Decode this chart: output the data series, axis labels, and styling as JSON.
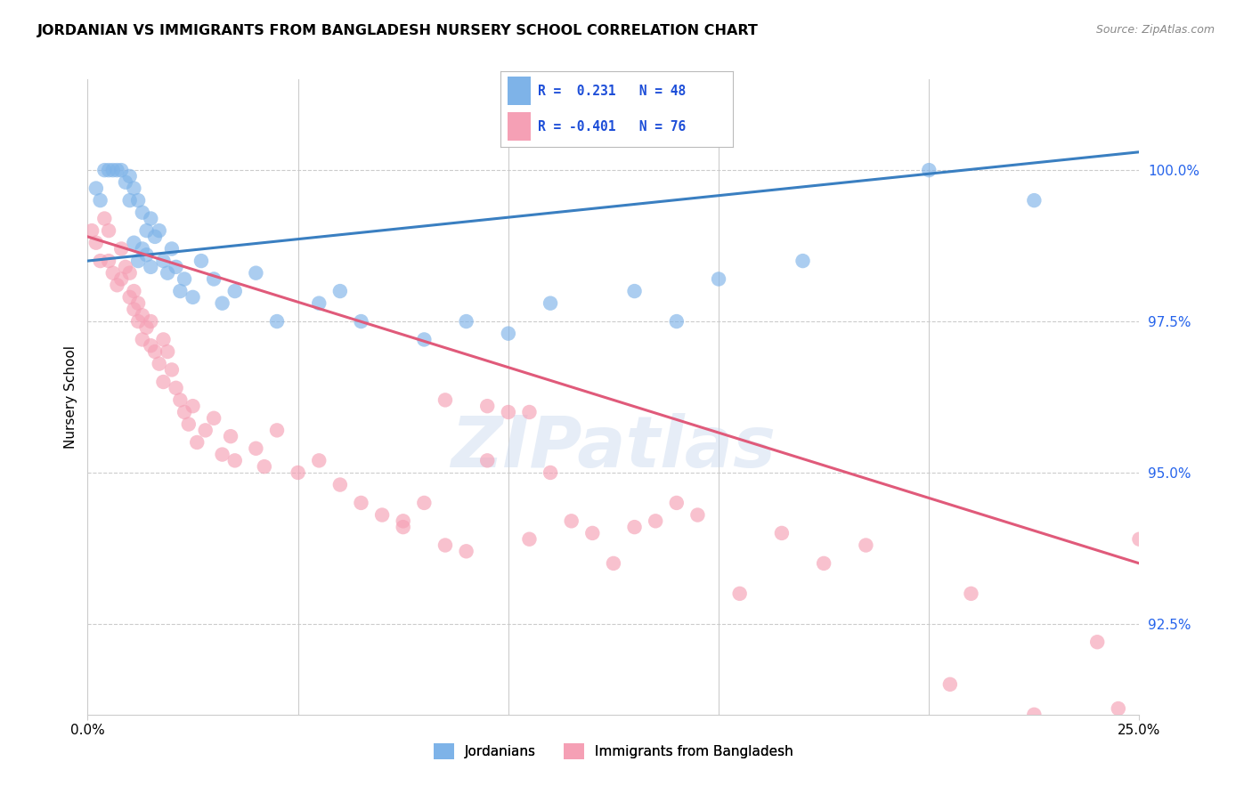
{
  "title": "JORDANIAN VS IMMIGRANTS FROM BANGLADESH NURSERY SCHOOL CORRELATION CHART",
  "source": "Source: ZipAtlas.com",
  "ylabel": "Nursery School",
  "ytick_values": [
    92.5,
    95.0,
    97.5,
    100.0
  ],
  "xlim": [
    0.0,
    25.0
  ],
  "ylim": [
    91.0,
    101.5
  ],
  "legend_blue_r_val": "0.231",
  "legend_blue_n_val": "48",
  "legend_pink_r_val": "-0.401",
  "legend_pink_n_val": "76",
  "blue_color": "#7EB3E8",
  "pink_color": "#F5A0B5",
  "blue_line_color": "#3A7FC1",
  "pink_line_color": "#E05A7A",
  "watermark": "ZIPatlas",
  "blue_line_x0": 0.0,
  "blue_line_y0": 98.5,
  "blue_line_x1": 25.0,
  "blue_line_y1": 100.3,
  "pink_line_x0": 0.0,
  "pink_line_y0": 98.9,
  "pink_line_x1": 25.0,
  "pink_line_y1": 93.5,
  "blue_scatter_x": [
    0.2,
    0.3,
    0.4,
    0.5,
    0.6,
    0.7,
    0.8,
    0.9,
    1.0,
    1.0,
    1.1,
    1.1,
    1.2,
    1.2,
    1.3,
    1.3,
    1.4,
    1.4,
    1.5,
    1.5,
    1.6,
    1.7,
    1.8,
    1.9,
    2.0,
    2.1,
    2.2,
    2.3,
    2.5,
    2.7,
    3.0,
    3.2,
    3.5,
    4.0,
    4.5,
    5.5,
    6.0,
    6.5,
    8.0,
    9.0,
    10.0,
    11.0,
    13.0,
    14.0,
    15.0,
    17.0,
    20.0,
    22.5
  ],
  "blue_scatter_y": [
    99.7,
    99.5,
    100.0,
    100.0,
    100.0,
    100.0,
    100.0,
    99.8,
    99.9,
    99.5,
    99.7,
    98.8,
    99.5,
    98.5,
    99.3,
    98.7,
    99.0,
    98.6,
    99.2,
    98.4,
    98.9,
    99.0,
    98.5,
    98.3,
    98.7,
    98.4,
    98.0,
    98.2,
    97.9,
    98.5,
    98.2,
    97.8,
    98.0,
    98.3,
    97.5,
    97.8,
    98.0,
    97.5,
    97.2,
    97.5,
    97.3,
    97.8,
    98.0,
    97.5,
    98.2,
    98.5,
    100.0,
    99.5
  ],
  "pink_scatter_x": [
    0.1,
    0.2,
    0.3,
    0.4,
    0.5,
    0.5,
    0.6,
    0.7,
    0.8,
    0.8,
    0.9,
    1.0,
    1.0,
    1.1,
    1.1,
    1.2,
    1.2,
    1.3,
    1.3,
    1.4,
    1.5,
    1.5,
    1.6,
    1.7,
    1.8,
    1.8,
    1.9,
    2.0,
    2.1,
    2.2,
    2.3,
    2.4,
    2.5,
    2.6,
    2.8,
    3.0,
    3.2,
    3.4,
    3.5,
    4.0,
    4.2,
    4.5,
    5.0,
    5.5,
    6.0,
    6.5,
    7.0,
    7.5,
    8.0,
    8.5,
    9.0,
    10.0,
    11.0,
    12.0,
    13.5,
    14.0,
    15.5,
    16.5,
    17.5,
    18.5,
    20.5,
    21.0,
    22.5,
    24.0,
    24.5,
    25.0,
    9.5,
    10.5,
    11.5,
    12.5,
    13.0,
    14.5,
    7.5,
    8.5,
    9.5,
    10.5
  ],
  "pink_scatter_y": [
    99.0,
    98.8,
    98.5,
    99.2,
    99.0,
    98.5,
    98.3,
    98.1,
    98.7,
    98.2,
    98.4,
    97.9,
    98.3,
    97.7,
    98.0,
    97.5,
    97.8,
    97.6,
    97.2,
    97.4,
    97.1,
    97.5,
    97.0,
    96.8,
    97.2,
    96.5,
    97.0,
    96.7,
    96.4,
    96.2,
    96.0,
    95.8,
    96.1,
    95.5,
    95.7,
    95.9,
    95.3,
    95.6,
    95.2,
    95.4,
    95.1,
    95.7,
    95.0,
    95.2,
    94.8,
    94.5,
    94.3,
    94.1,
    94.5,
    96.2,
    93.7,
    96.0,
    95.0,
    94.0,
    94.2,
    94.5,
    93.0,
    94.0,
    93.5,
    93.8,
    91.5,
    93.0,
    91.0,
    92.2,
    91.1,
    93.9,
    95.2,
    96.0,
    94.2,
    93.5,
    94.1,
    94.3,
    94.2,
    93.8,
    96.1,
    93.9
  ]
}
